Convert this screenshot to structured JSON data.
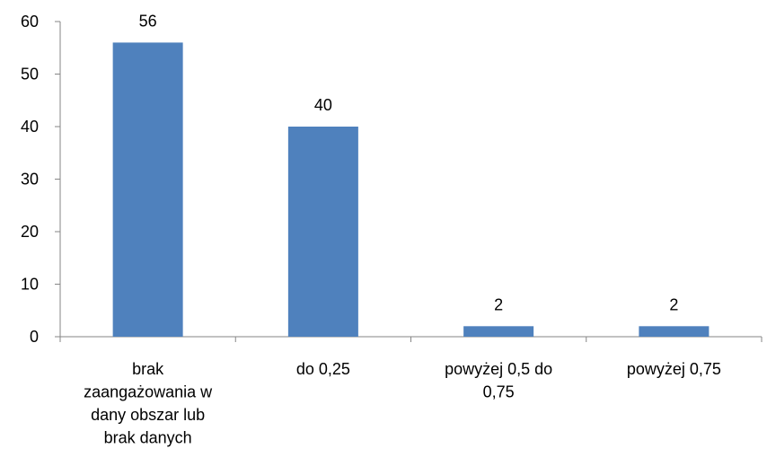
{
  "chart_data": {
    "type": "bar",
    "categories": [
      [
        "brak",
        "zaangażowania w",
        "dany obszar lub",
        "brak danych"
      ],
      [
        "do 0,25"
      ],
      [
        "powyżej 0,5 do",
        "0,75"
      ],
      [
        "powyżej 0,75"
      ]
    ],
    "values": [
      56,
      40,
      2,
      2
    ],
    "data_labels": [
      "56",
      "40",
      "2",
      "2"
    ],
    "ylim": [
      0,
      60
    ],
    "yticks": [
      0,
      10,
      20,
      30,
      40,
      50,
      60
    ],
    "grid": false,
    "legend": "none",
    "bar_color": "#4F81BD",
    "axis_color": "#868686"
  }
}
